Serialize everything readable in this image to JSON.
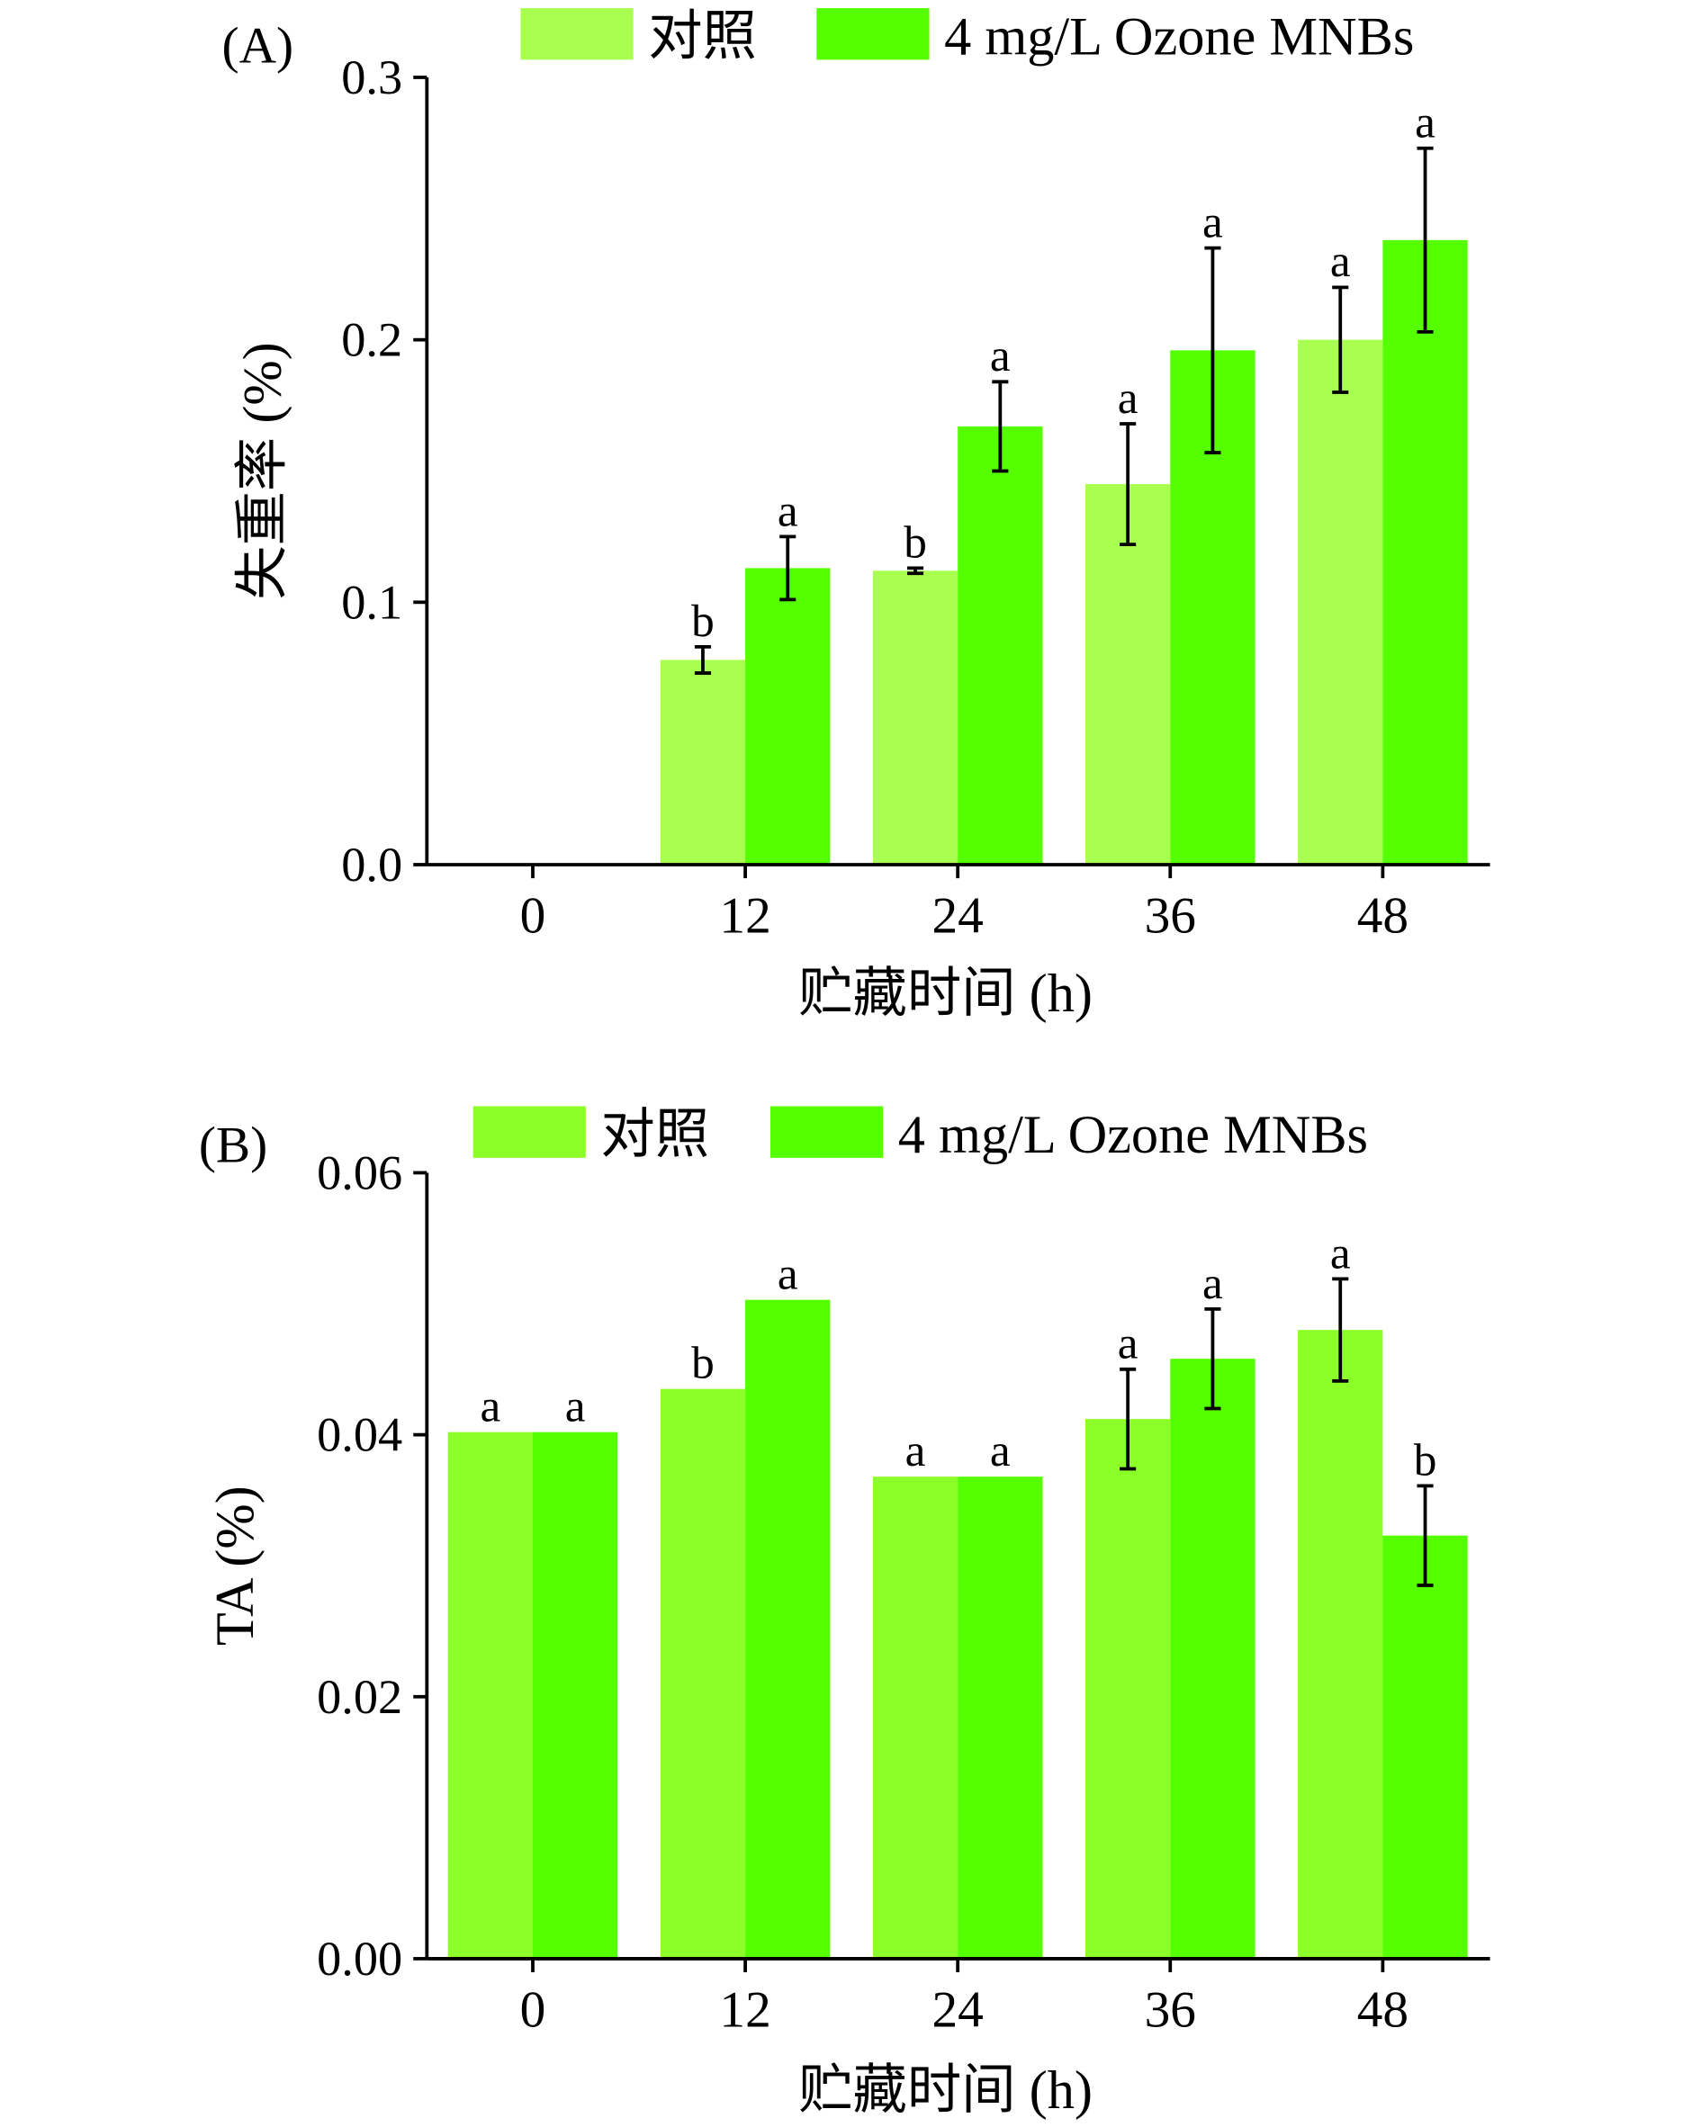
{
  "chart_data": [
    {
      "type": "bar",
      "panel_label": "(A)",
      "xlabel": "贮藏时间 (h)",
      "ylabel": "失重率 (%)",
      "categories": [
        "0",
        "12",
        "24",
        "36",
        "48"
      ],
      "ylim": [
        0,
        0.3
      ],
      "yticks": [
        "0.0",
        "0.1",
        "0.2",
        "0.3"
      ],
      "ytick_values": [
        0,
        0.1,
        0.2,
        0.3
      ],
      "legend_placement": "top",
      "series": [
        {
          "name": "对照",
          "color": "#a8ff50",
          "values": [
            0,
            0.078,
            0.112,
            0.145,
            0.2
          ],
          "errors": [
            0,
            0.005,
            0.001,
            0.023,
            0.02
          ],
          "letters": [
            "",
            "b",
            "b",
            "a",
            "a"
          ]
        },
        {
          "name": "4 mg/L Ozone MNBs",
          "color": "#55ff00",
          "values": [
            0,
            0.113,
            0.167,
            0.196,
            0.238
          ],
          "errors": [
            0,
            0.012,
            0.017,
            0.039,
            0.035
          ],
          "letters": [
            "",
            "a",
            "a",
            "a",
            "a"
          ]
        }
      ]
    },
    {
      "type": "bar",
      "panel_label": "(B)",
      "xlabel": "贮藏时间 (h)",
      "ylabel": "TA (%)",
      "categories": [
        "0",
        "12",
        "24",
        "36",
        "48"
      ],
      "ylim": [
        0,
        0.06
      ],
      "yticks": [
        "0.00",
        "0.02",
        "0.04",
        "0.06"
      ],
      "ytick_values": [
        0,
        0.02,
        0.04,
        0.06
      ],
      "legend_placement": "top",
      "series": [
        {
          "name": "对照",
          "color": "#8cff28",
          "values": [
            0.0402,
            0.0435,
            0.0368,
            0.0412,
            0.048
          ],
          "errors": [
            0,
            0,
            0,
            0.0038,
            0.0039
          ],
          "letters": [
            "a",
            "b",
            "a",
            "a",
            "a"
          ]
        },
        {
          "name": "4 mg/L Ozone MNBs",
          "color": "#55ff00",
          "values": [
            0.0402,
            0.0503,
            0.0368,
            0.0458,
            0.0323
          ],
          "errors": [
            0,
            0,
            0,
            0.0038,
            0.0038
          ],
          "letters": [
            "a",
            "a",
            "a",
            "a",
            "b"
          ]
        }
      ]
    }
  ]
}
